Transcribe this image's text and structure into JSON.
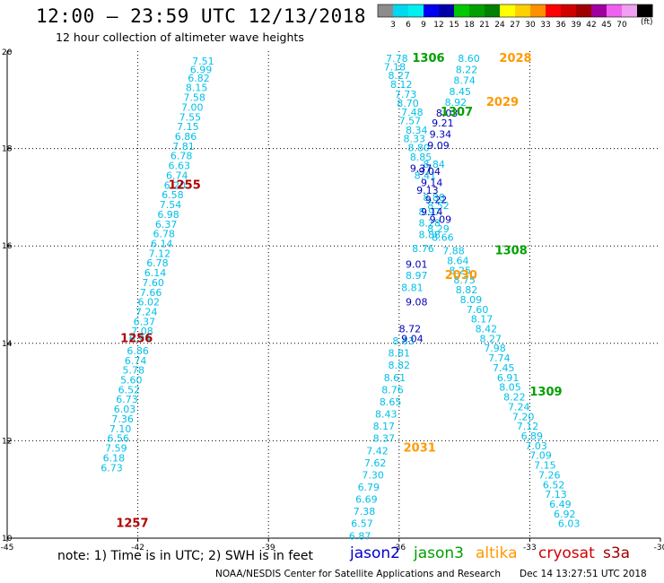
{
  "header": {
    "title": "12:00 – 23:59 UTC 12/13/2018",
    "subtitle": "12 hour collection of altimeter wave heights"
  },
  "color_scale": {
    "unit": "(ft)",
    "bins": [
      {
        "label": "",
        "color": "#8c8c8c"
      },
      {
        "label": "3",
        "color": "#00d8f0"
      },
      {
        "label": "6",
        "color": "#00f0f0"
      },
      {
        "label": "9",
        "color": "#0000f0"
      },
      {
        "label": "12",
        "color": "#0000a8"
      },
      {
        "label": "15",
        "color": "#00c800"
      },
      {
        "label": "18",
        "color": "#00a000"
      },
      {
        "label": "21",
        "color": "#008000"
      },
      {
        "label": "24",
        "color": "#ffff00"
      },
      {
        "label": "27",
        "color": "#ffd000"
      },
      {
        "label": "30",
        "color": "#ff9000"
      },
      {
        "label": "33",
        "color": "#ff0000"
      },
      {
        "label": "36",
        "color": "#d00000"
      },
      {
        "label": "39",
        "color": "#a00000"
      },
      {
        "label": "42",
        "color": "#a000a0"
      },
      {
        "label": "45",
        "color": "#f060f0"
      },
      {
        "label": "70",
        "color": "#f0a0f0"
      },
      {
        "label": "",
        "color": "#000000"
      }
    ]
  },
  "footer": {
    "note": "note: 1) Time is in UTC; 2) SWH is in feet",
    "credit": "NOAA/NESDIS Center for Satellite Applications and Research",
    "timestamp": "Dec 14 13:27:51 UTC 2018"
  },
  "legend": [
    {
      "label": "jason2",
      "color": "#0000d0"
    },
    {
      "label": "jason3",
      "color": "#00a000"
    },
    {
      "label": "altika",
      "color": "#ff9900"
    },
    {
      "label": "cryosat",
      "color": "#d00000"
    },
    {
      "label": "s3a",
      "color": "#a00000"
    }
  ],
  "chart_data": {
    "type": "scatter",
    "xlim": [
      -45,
      -30
    ],
    "ylim": [
      10,
      20
    ],
    "x_ticks": [
      "-45",
      "-42",
      "-39",
      "-36",
      "-33",
      "-30"
    ],
    "y_ticks": [
      "10",
      "12",
      "14",
      "16",
      "18",
      "20"
    ],
    "grid": true,
    "series": [
      {
        "name": "s3a",
        "color": "#00c0e8",
        "points": [
          {
            "x": -40.5,
            "y": 19.8,
            "v": "7.51"
          },
          {
            "x": -40.55,
            "y": 19.62,
            "v": "6.99"
          },
          {
            "x": -40.6,
            "y": 19.45,
            "v": "6.82"
          },
          {
            "x": -40.65,
            "y": 19.25,
            "v": "8.15"
          },
          {
            "x": -40.7,
            "y": 19.05,
            "v": "7.58"
          },
          {
            "x": -40.75,
            "y": 18.85,
            "v": "7.00"
          },
          {
            "x": -40.8,
            "y": 18.65,
            "v": "7.55"
          },
          {
            "x": -40.85,
            "y": 18.45,
            "v": "7.15"
          },
          {
            "x": -40.9,
            "y": 18.25,
            "v": "6.86"
          },
          {
            "x": -40.95,
            "y": 18.05,
            "v": "7.81"
          },
          {
            "x": -41.0,
            "y": 17.85,
            "v": "6.78"
          },
          {
            "x": -41.05,
            "y": 17.65,
            "v": "6.63"
          },
          {
            "x": -41.1,
            "y": 17.45,
            "v": "6.74"
          },
          {
            "x": -41.15,
            "y": 17.25,
            "v": "6.20"
          },
          {
            "x": -41.2,
            "y": 17.05,
            "v": "6.58"
          },
          {
            "x": -41.25,
            "y": 16.85,
            "v": "7.54"
          },
          {
            "x": -41.3,
            "y": 16.65,
            "v": "6.98"
          },
          {
            "x": -41.35,
            "y": 16.45,
            "v": "6.37"
          },
          {
            "x": -41.4,
            "y": 16.25,
            "v": "6.78"
          },
          {
            "x": -41.45,
            "y": 16.05,
            "v": "6.14"
          },
          {
            "x": -41.5,
            "y": 15.85,
            "v": "7.12"
          },
          {
            "x": -41.55,
            "y": 15.65,
            "v": "6.78"
          },
          {
            "x": -41.6,
            "y": 15.45,
            "v": "6.14"
          },
          {
            "x": -41.65,
            "y": 15.25,
            "v": "7.60"
          },
          {
            "x": -41.7,
            "y": 15.05,
            "v": "7.66"
          },
          {
            "x": -41.75,
            "y": 14.85,
            "v": "6.02"
          },
          {
            "x": -41.8,
            "y": 14.65,
            "v": "7.24"
          },
          {
            "x": -41.85,
            "y": 14.45,
            "v": "6.37"
          },
          {
            "x": -41.9,
            "y": 14.25,
            "v": "7.08"
          },
          {
            "x": -41.95,
            "y": 14.1,
            "v": "6.94"
          },
          {
            "x": -42.0,
            "y": 13.85,
            "v": "6.86"
          },
          {
            "x": -42.05,
            "y": 13.65,
            "v": "6.74"
          },
          {
            "x": -42.1,
            "y": 13.45,
            "v": "5.78"
          },
          {
            "x": -42.15,
            "y": 13.25,
            "v": "5.60"
          },
          {
            "x": -42.2,
            "y": 13.05,
            "v": "6.52"
          },
          {
            "x": -42.25,
            "y": 12.85,
            "v": "6.73"
          },
          {
            "x": -42.3,
            "y": 12.65,
            "v": "6.03"
          },
          {
            "x": -42.35,
            "y": 12.45,
            "v": "7.36"
          },
          {
            "x": -42.4,
            "y": 12.25,
            "v": "7.10"
          },
          {
            "x": -42.45,
            "y": 12.05,
            "v": "6.56"
          },
          {
            "x": -42.5,
            "y": 11.85,
            "v": "7.59"
          },
          {
            "x": -42.55,
            "y": 11.65,
            "v": "6.18"
          },
          {
            "x": -42.6,
            "y": 11.45,
            "v": "6.73"
          }
        ]
      },
      {
        "name": "s3a",
        "color": "#00c0e8",
        "points": [
          {
            "x": -36.05,
            "y": 19.85,
            "v": "7.78"
          },
          {
            "x": -36.1,
            "y": 19.68,
            "v": "7.18"
          },
          {
            "x": -36.0,
            "y": 19.5,
            "v": "8.27"
          },
          {
            "x": -35.95,
            "y": 19.32,
            "v": "8.12"
          },
          {
            "x": -35.85,
            "y": 19.12,
            "v": "7.73"
          },
          {
            "x": -35.8,
            "y": 18.93,
            "v": "8.70"
          },
          {
            "x": -35.7,
            "y": 18.75,
            "v": "7.48"
          },
          {
            "x": -35.75,
            "y": 18.57,
            "v": "7.57"
          },
          {
            "x": -35.6,
            "y": 18.38,
            "v": "8.34"
          },
          {
            "x": -35.65,
            "y": 18.2,
            "v": "8.33"
          },
          {
            "x": -35.55,
            "y": 18.02,
            "v": "8.80"
          },
          {
            "x": -35.5,
            "y": 17.83,
            "v": "8.85"
          },
          {
            "x": -35.4,
            "y": 17.45,
            "v": "8.41"
          },
          {
            "x": -35.2,
            "y": 17.0,
            "v": "8.88"
          },
          {
            "x": -35.3,
            "y": 16.7,
            "v": "8.97"
          },
          {
            "x": -35.3,
            "y": 16.47,
            "v": "8.28"
          },
          {
            "x": -35.3,
            "y": 16.23,
            "v": "8.88"
          },
          {
            "x": -35.45,
            "y": 15.95,
            "v": "8.76"
          },
          {
            "x": -35.6,
            "y": 15.4,
            "v": "8.97"
          },
          {
            "x": -35.7,
            "y": 15.15,
            "v": "8.81"
          },
          {
            "x": -35.9,
            "y": 14.05,
            "v": "8.83"
          },
          {
            "x": -36.0,
            "y": 13.8,
            "v": "8.81"
          },
          {
            "x": -36.0,
            "y": 13.55,
            "v": "8.82"
          },
          {
            "x": -36.1,
            "y": 13.3,
            "v": "8.61"
          },
          {
            "x": -36.15,
            "y": 13.05,
            "v": "8.76"
          },
          {
            "x": -36.2,
            "y": 12.8,
            "v": "8.65"
          },
          {
            "x": -36.3,
            "y": 12.55,
            "v": "8.43"
          },
          {
            "x": -36.35,
            "y": 12.3,
            "v": "8.17"
          },
          {
            "x": -36.35,
            "y": 12.05,
            "v": "8.37"
          },
          {
            "x": -36.5,
            "y": 11.8,
            "v": "7.42"
          },
          {
            "x": -36.55,
            "y": 11.55,
            "v": "7.62"
          },
          {
            "x": -36.6,
            "y": 11.3,
            "v": "7.30"
          },
          {
            "x": -36.7,
            "y": 11.05,
            "v": "6.79"
          },
          {
            "x": -36.75,
            "y": 10.8,
            "v": "6.69"
          },
          {
            "x": -36.8,
            "y": 10.55,
            "v": "7.38"
          },
          {
            "x": -36.85,
            "y": 10.3,
            "v": "6.57"
          },
          {
            "x": -36.9,
            "y": 10.05,
            "v": "6.87"
          }
        ]
      },
      {
        "name": "s3a",
        "color": "#00c0e8",
        "points": [
          {
            "x": -34.4,
            "y": 19.85,
            "v": "8.60"
          },
          {
            "x": -34.45,
            "y": 19.62,
            "v": "8.22"
          },
          {
            "x": -34.5,
            "y": 19.4,
            "v": "8.74"
          },
          {
            "x": -34.6,
            "y": 19.17,
            "v": "8.45"
          },
          {
            "x": -34.7,
            "y": 18.95,
            "v": "8.92"
          },
          {
            "x": -35.2,
            "y": 17.68,
            "v": "8.84"
          },
          {
            "x": -35.1,
            "y": 16.83,
            "v": "8.52"
          },
          {
            "x": -35.1,
            "y": 16.35,
            "v": "8.29"
          },
          {
            "x": -35.0,
            "y": 16.18,
            "v": "8.66"
          },
          {
            "x": -34.75,
            "y": 15.9,
            "v": "7.88"
          },
          {
            "x": -34.65,
            "y": 15.7,
            "v": "8.64"
          },
          {
            "x": -34.6,
            "y": 15.5,
            "v": "8.25"
          },
          {
            "x": -34.5,
            "y": 15.3,
            "v": "8.75"
          },
          {
            "x": -34.45,
            "y": 15.1,
            "v": "8.82"
          },
          {
            "x": -34.35,
            "y": 14.9,
            "v": "8.09"
          },
          {
            "x": -34.2,
            "y": 14.7,
            "v": "7.60"
          },
          {
            "x": -34.1,
            "y": 14.5,
            "v": "8.17"
          },
          {
            "x": -34.0,
            "y": 14.3,
            "v": "8.42"
          },
          {
            "x": -33.9,
            "y": 14.1,
            "v": "8.27"
          },
          {
            "x": -33.8,
            "y": 13.9,
            "v": "7.98"
          },
          {
            "x": -33.7,
            "y": 13.7,
            "v": "7.74"
          },
          {
            "x": -33.6,
            "y": 13.5,
            "v": "7.45"
          },
          {
            "x": -33.5,
            "y": 13.3,
            "v": "6.91"
          },
          {
            "x": -33.45,
            "y": 13.1,
            "v": "8.05"
          },
          {
            "x": -33.35,
            "y": 12.9,
            "v": "8.22"
          },
          {
            "x": -33.25,
            "y": 12.7,
            "v": "7.24"
          },
          {
            "x": -33.15,
            "y": 12.5,
            "v": "7.20"
          },
          {
            "x": -33.05,
            "y": 12.3,
            "v": "7.12"
          },
          {
            "x": -32.95,
            "y": 12.1,
            "v": "6.89"
          },
          {
            "x": -32.85,
            "y": 11.9,
            "v": "7.03"
          },
          {
            "x": -32.75,
            "y": 11.7,
            "v": "7.09"
          },
          {
            "x": -32.65,
            "y": 11.5,
            "v": "7.15"
          },
          {
            "x": -32.55,
            "y": 11.3,
            "v": "7.26"
          },
          {
            "x": -32.45,
            "y": 11.1,
            "v": "6.52"
          },
          {
            "x": -32.4,
            "y": 10.9,
            "v": "7.13"
          },
          {
            "x": -32.3,
            "y": 10.7,
            "v": "6.49"
          },
          {
            "x": -32.2,
            "y": 10.5,
            "v": "6.92"
          },
          {
            "x": -32.1,
            "y": 10.3,
            "v": "6.03"
          }
        ]
      },
      {
        "name": "jason2",
        "color": "#0000b8",
        "points": [
          {
            "x": -34.9,
            "y": 18.73,
            "v": "8.03"
          },
          {
            "x": -35.0,
            "y": 18.53,
            "v": "9.21"
          },
          {
            "x": -35.05,
            "y": 18.3,
            "v": "9.34"
          },
          {
            "x": -35.1,
            "y": 18.07,
            "v": "9.09"
          },
          {
            "x": -35.5,
            "y": 17.6,
            "v": "9.37"
          },
          {
            "x": -35.3,
            "y": 17.53,
            "v": "9.04"
          },
          {
            "x": -35.25,
            "y": 17.3,
            "v": "9.14"
          },
          {
            "x": -35.35,
            "y": 17.15,
            "v": "9.13"
          },
          {
            "x": -35.15,
            "y": 16.95,
            "v": "9.22"
          },
          {
            "x": -35.25,
            "y": 16.7,
            "v": "9.14"
          },
          {
            "x": -35.05,
            "y": 16.55,
            "v": "9.09"
          },
          {
            "x": -35.6,
            "y": 15.63,
            "v": "9.01"
          },
          {
            "x": -35.6,
            "y": 14.85,
            "v": "9.08"
          },
          {
            "x": -35.75,
            "y": 14.3,
            "v": "8.72"
          },
          {
            "x": -35.7,
            "y": 14.1,
            "v": "9.04"
          }
        ]
      }
    ],
    "tracks": [
      {
        "label": "1255",
        "satellite": "cryosat",
        "color": "#b00000",
        "x": -41.3,
        "y": 17.25
      },
      {
        "label": "1256",
        "satellite": "cryosat",
        "color": "#b00000",
        "x": -42.4,
        "y": 14.1
      },
      {
        "label": "1257",
        "satellite": "cryosat",
        "color": "#b00000",
        "x": -42.5,
        "y": 10.3
      },
      {
        "label": "1306",
        "satellite": "jason3",
        "color": "#00a000",
        "x": -35.7,
        "y": 19.85
      },
      {
        "label": "1307",
        "satellite": "jason3",
        "color": "#00a000",
        "x": -35.05,
        "y": 18.75
      },
      {
        "label": "1308",
        "satellite": "jason3",
        "color": "#00a000",
        "x": -33.8,
        "y": 15.9
      },
      {
        "label": "1309",
        "satellite": "jason3",
        "color": "#00a000",
        "x": -33.0,
        "y": 13.0
      },
      {
        "label": "2028",
        "satellite": "altika",
        "color": "#ff9900",
        "x": -33.7,
        "y": 19.85
      },
      {
        "label": "2029",
        "satellite": "altika",
        "color": "#ff9900",
        "x": -34.0,
        "y": 18.95
      },
      {
        "label": "2030",
        "satellite": "altika",
        "color": "#ff9900",
        "x": -34.95,
        "y": 15.4
      },
      {
        "label": "2031",
        "satellite": "altika",
        "color": "#ff9900",
        "x": -35.9,
        "y": 11.85
      }
    ]
  }
}
